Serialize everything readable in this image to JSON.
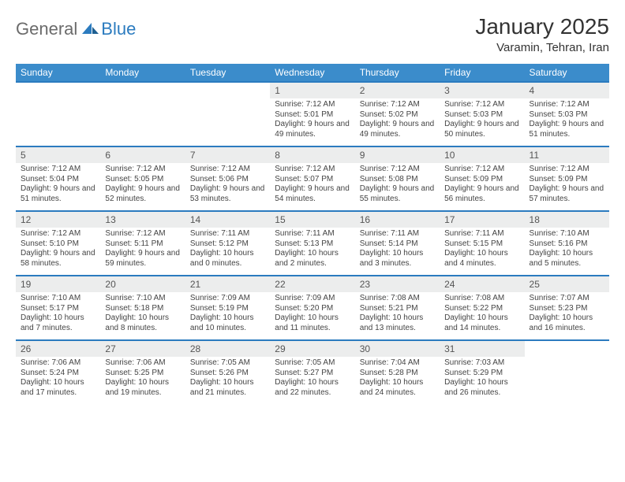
{
  "logo": {
    "general": "General",
    "blue": "Blue"
  },
  "title": "January 2025",
  "location": "Varamin, Tehran, Iran",
  "title_fontsize": 28,
  "location_fontsize": 15,
  "header_bg": "#3b8ccb",
  "header_fg": "#ffffff",
  "daynum_bg": "#eceded",
  "row_border": "#2b7bbf",
  "cell_fontsize": 10,
  "daynum_fontsize": 12,
  "th_fontsize": 12,
  "weekdays": [
    "Sunday",
    "Monday",
    "Tuesday",
    "Wednesday",
    "Thursday",
    "Friday",
    "Saturday"
  ],
  "weeks": [
    [
      null,
      null,
      null,
      {
        "n": "1",
        "sr": "Sunrise: 7:12 AM",
        "ss": "Sunset: 5:01 PM",
        "dl": "Daylight: 9 hours and 49 minutes."
      },
      {
        "n": "2",
        "sr": "Sunrise: 7:12 AM",
        "ss": "Sunset: 5:02 PM",
        "dl": "Daylight: 9 hours and 49 minutes."
      },
      {
        "n": "3",
        "sr": "Sunrise: 7:12 AM",
        "ss": "Sunset: 5:03 PM",
        "dl": "Daylight: 9 hours and 50 minutes."
      },
      {
        "n": "4",
        "sr": "Sunrise: 7:12 AM",
        "ss": "Sunset: 5:03 PM",
        "dl": "Daylight: 9 hours and 51 minutes."
      }
    ],
    [
      {
        "n": "5",
        "sr": "Sunrise: 7:12 AM",
        "ss": "Sunset: 5:04 PM",
        "dl": "Daylight: 9 hours and 51 minutes."
      },
      {
        "n": "6",
        "sr": "Sunrise: 7:12 AM",
        "ss": "Sunset: 5:05 PM",
        "dl": "Daylight: 9 hours and 52 minutes."
      },
      {
        "n": "7",
        "sr": "Sunrise: 7:12 AM",
        "ss": "Sunset: 5:06 PM",
        "dl": "Daylight: 9 hours and 53 minutes."
      },
      {
        "n": "8",
        "sr": "Sunrise: 7:12 AM",
        "ss": "Sunset: 5:07 PM",
        "dl": "Daylight: 9 hours and 54 minutes."
      },
      {
        "n": "9",
        "sr": "Sunrise: 7:12 AM",
        "ss": "Sunset: 5:08 PM",
        "dl": "Daylight: 9 hours and 55 minutes."
      },
      {
        "n": "10",
        "sr": "Sunrise: 7:12 AM",
        "ss": "Sunset: 5:09 PM",
        "dl": "Daylight: 9 hours and 56 minutes."
      },
      {
        "n": "11",
        "sr": "Sunrise: 7:12 AM",
        "ss": "Sunset: 5:09 PM",
        "dl": "Daylight: 9 hours and 57 minutes."
      }
    ],
    [
      {
        "n": "12",
        "sr": "Sunrise: 7:12 AM",
        "ss": "Sunset: 5:10 PM",
        "dl": "Daylight: 9 hours and 58 minutes."
      },
      {
        "n": "13",
        "sr": "Sunrise: 7:12 AM",
        "ss": "Sunset: 5:11 PM",
        "dl": "Daylight: 9 hours and 59 minutes."
      },
      {
        "n": "14",
        "sr": "Sunrise: 7:11 AM",
        "ss": "Sunset: 5:12 PM",
        "dl": "Daylight: 10 hours and 0 minutes."
      },
      {
        "n": "15",
        "sr": "Sunrise: 7:11 AM",
        "ss": "Sunset: 5:13 PM",
        "dl": "Daylight: 10 hours and 2 minutes."
      },
      {
        "n": "16",
        "sr": "Sunrise: 7:11 AM",
        "ss": "Sunset: 5:14 PM",
        "dl": "Daylight: 10 hours and 3 minutes."
      },
      {
        "n": "17",
        "sr": "Sunrise: 7:11 AM",
        "ss": "Sunset: 5:15 PM",
        "dl": "Daylight: 10 hours and 4 minutes."
      },
      {
        "n": "18",
        "sr": "Sunrise: 7:10 AM",
        "ss": "Sunset: 5:16 PM",
        "dl": "Daylight: 10 hours and 5 minutes."
      }
    ],
    [
      {
        "n": "19",
        "sr": "Sunrise: 7:10 AM",
        "ss": "Sunset: 5:17 PM",
        "dl": "Daylight: 10 hours and 7 minutes."
      },
      {
        "n": "20",
        "sr": "Sunrise: 7:10 AM",
        "ss": "Sunset: 5:18 PM",
        "dl": "Daylight: 10 hours and 8 minutes."
      },
      {
        "n": "21",
        "sr": "Sunrise: 7:09 AM",
        "ss": "Sunset: 5:19 PM",
        "dl": "Daylight: 10 hours and 10 minutes."
      },
      {
        "n": "22",
        "sr": "Sunrise: 7:09 AM",
        "ss": "Sunset: 5:20 PM",
        "dl": "Daylight: 10 hours and 11 minutes."
      },
      {
        "n": "23",
        "sr": "Sunrise: 7:08 AM",
        "ss": "Sunset: 5:21 PM",
        "dl": "Daylight: 10 hours and 13 minutes."
      },
      {
        "n": "24",
        "sr": "Sunrise: 7:08 AM",
        "ss": "Sunset: 5:22 PM",
        "dl": "Daylight: 10 hours and 14 minutes."
      },
      {
        "n": "25",
        "sr": "Sunrise: 7:07 AM",
        "ss": "Sunset: 5:23 PM",
        "dl": "Daylight: 10 hours and 16 minutes."
      }
    ],
    [
      {
        "n": "26",
        "sr": "Sunrise: 7:06 AM",
        "ss": "Sunset: 5:24 PM",
        "dl": "Daylight: 10 hours and 17 minutes."
      },
      {
        "n": "27",
        "sr": "Sunrise: 7:06 AM",
        "ss": "Sunset: 5:25 PM",
        "dl": "Daylight: 10 hours and 19 minutes."
      },
      {
        "n": "28",
        "sr": "Sunrise: 7:05 AM",
        "ss": "Sunset: 5:26 PM",
        "dl": "Daylight: 10 hours and 21 minutes."
      },
      {
        "n": "29",
        "sr": "Sunrise: 7:05 AM",
        "ss": "Sunset: 5:27 PM",
        "dl": "Daylight: 10 hours and 22 minutes."
      },
      {
        "n": "30",
        "sr": "Sunrise: 7:04 AM",
        "ss": "Sunset: 5:28 PM",
        "dl": "Daylight: 10 hours and 24 minutes."
      },
      {
        "n": "31",
        "sr": "Sunrise: 7:03 AM",
        "ss": "Sunset: 5:29 PM",
        "dl": "Daylight: 10 hours and 26 minutes."
      },
      null
    ]
  ]
}
